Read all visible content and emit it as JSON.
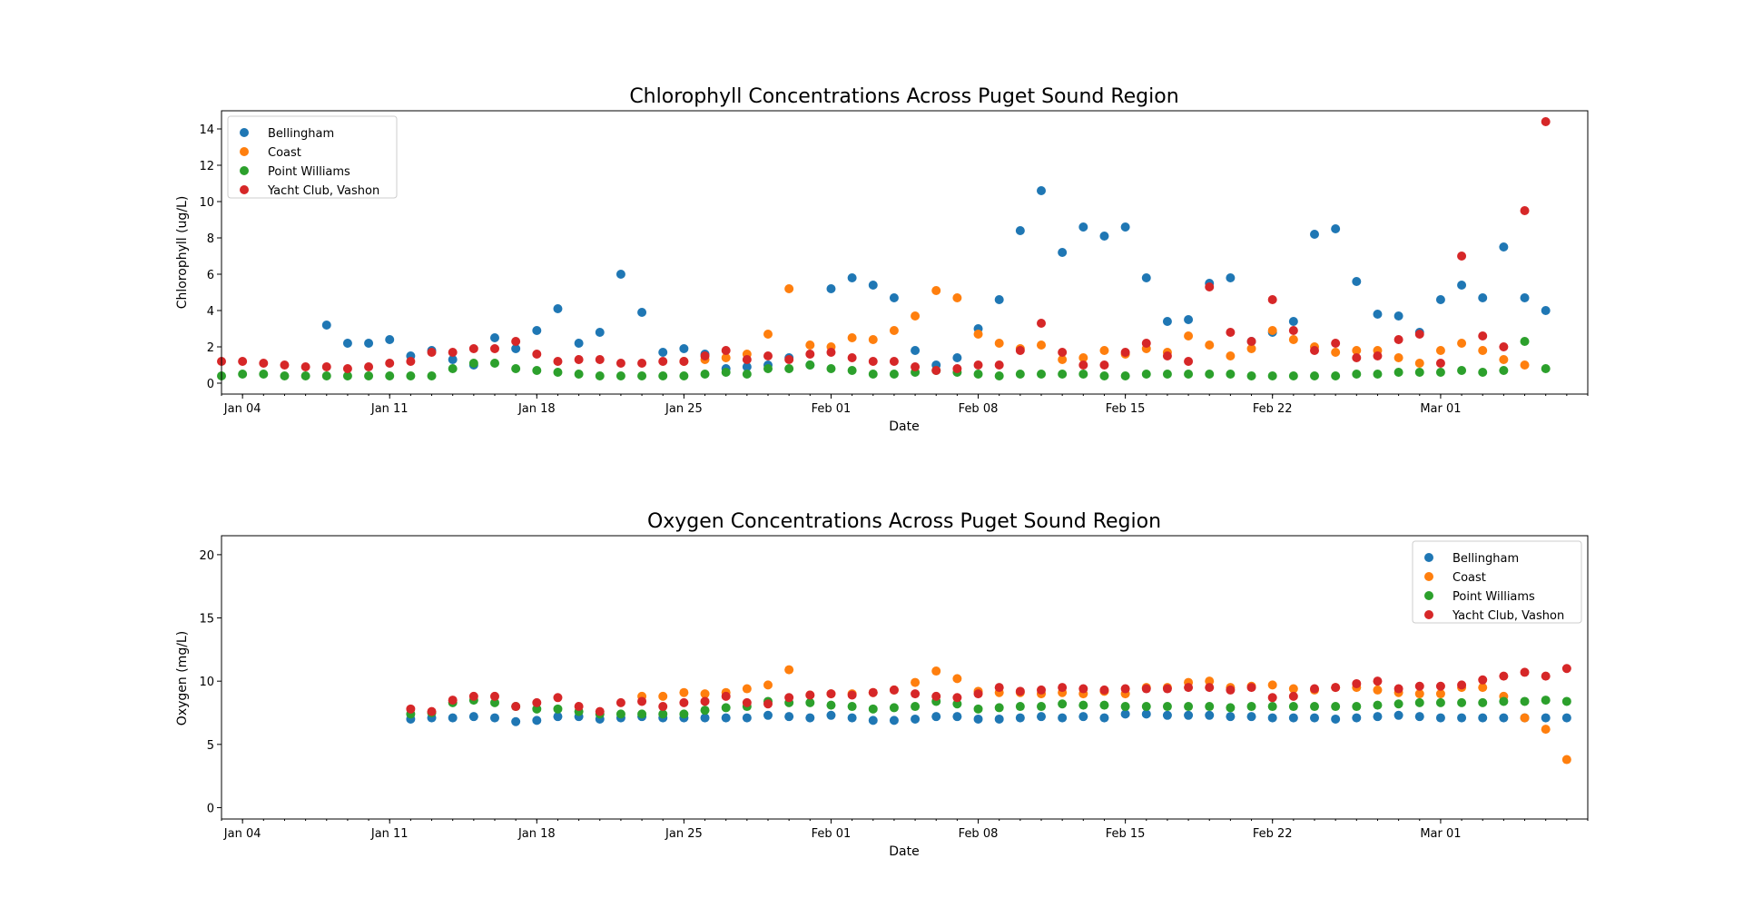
{
  "colors": {
    "Bellingham": "#1f77b4",
    "Coast": "#ff7f0e",
    "Point Williams": "#2ca02c",
    "Yacht Club, Vashon": "#d62728"
  },
  "x_tick_labels": [
    "Jan 04",
    "Jan 11",
    "Jan 18",
    "Jan 25",
    "Feb 01",
    "Feb 08",
    "Feb 15",
    "Feb 22",
    "Mar 01"
  ],
  "chart_data": [
    {
      "type": "scatter",
      "title": "Chlorophyll Concentrations Across Puget Sound Region",
      "xlabel": "Date",
      "ylabel": "Chlorophyll (ug/L)",
      "x_dates": [
        "2020-01-03",
        "2020-01-04",
        "2020-01-05",
        "2020-01-06",
        "2020-01-07",
        "2020-01-08",
        "2020-01-09",
        "2020-01-10",
        "2020-01-11",
        "2020-01-12",
        "2020-01-13",
        "2020-01-14",
        "2020-01-15",
        "2020-01-16",
        "2020-01-17",
        "2020-01-18",
        "2020-01-19",
        "2020-01-20",
        "2020-01-21",
        "2020-01-22",
        "2020-01-23",
        "2020-01-24",
        "2020-01-25",
        "2020-01-26",
        "2020-01-27",
        "2020-01-28",
        "2020-01-29",
        "2020-01-30",
        "2020-01-31",
        "2020-02-01",
        "2020-02-02",
        "2020-02-03",
        "2020-02-04",
        "2020-02-05",
        "2020-02-06",
        "2020-02-07",
        "2020-02-08",
        "2020-02-09",
        "2020-02-10",
        "2020-02-11",
        "2020-02-12",
        "2020-02-13",
        "2020-02-14",
        "2020-02-15",
        "2020-02-16",
        "2020-02-17",
        "2020-02-18",
        "2020-02-19",
        "2020-02-20",
        "2020-02-21",
        "2020-02-22",
        "2020-02-23",
        "2020-02-24",
        "2020-02-25",
        "2020-02-26",
        "2020-02-27",
        "2020-02-28",
        "2020-02-29",
        "2020-03-01",
        "2020-03-02",
        "2020-03-03",
        "2020-03-04",
        "2020-03-05",
        "2020-03-06",
        "2020-03-07",
        "2020-03-08"
      ],
      "xlim": [
        "2020-01-03",
        "2020-03-08"
      ],
      "ylim": [
        -0.6,
        15.0
      ],
      "y_ticks": [
        0,
        2,
        4,
        6,
        8,
        10,
        12,
        14
      ],
      "legend_position": "upper left",
      "series": [
        {
          "name": "Bellingham",
          "values": [
            null,
            null,
            null,
            null,
            null,
            3.2,
            2.2,
            2.2,
            2.4,
            1.5,
            1.8,
            1.3,
            1.0,
            2.5,
            1.9,
            2.9,
            4.1,
            2.2,
            2.8,
            6.0,
            3.9,
            1.7,
            1.9,
            1.6,
            0.8,
            0.9,
            1.0,
            1.4,
            1.0,
            5.2,
            5.8,
            5.4,
            4.7,
            1.8,
            1.0,
            1.4,
            3.0,
            4.6,
            8.4,
            10.6,
            7.2,
            8.6,
            8.1,
            8.6,
            5.8,
            3.4,
            3.5,
            5.5,
            5.8,
            2.3,
            2.8,
            3.4,
            8.2,
            8.5,
            5.6,
            3.8,
            3.7,
            2.8,
            4.6,
            5.4,
            4.7,
            7.5,
            4.7,
            4.0,
            null,
            null
          ]
        },
        {
          "name": "Coast",
          "values": [
            null,
            null,
            null,
            null,
            null,
            null,
            null,
            null,
            null,
            null,
            null,
            null,
            null,
            null,
            null,
            null,
            null,
            null,
            null,
            null,
            null,
            null,
            1.2,
            1.3,
            1.4,
            1.6,
            2.7,
            5.2,
            2.1,
            2.0,
            2.5,
            2.4,
            2.9,
            3.7,
            5.1,
            4.7,
            2.7,
            2.2,
            1.9,
            2.1,
            1.3,
            1.4,
            1.8,
            1.6,
            1.9,
            1.7,
            2.6,
            2.1,
            1.5,
            1.9,
            2.9,
            2.4,
            2.0,
            1.7,
            1.8,
            1.8,
            1.4,
            1.1,
            1.8,
            2.2,
            1.8,
            1.3,
            1.0,
            null,
            null,
            null
          ]
        },
        {
          "name": "Point Williams",
          "values": [
            0.4,
            0.5,
            0.5,
            0.4,
            0.4,
            0.4,
            0.4,
            0.4,
            0.4,
            0.4,
            0.4,
            0.8,
            1.1,
            1.1,
            0.8,
            0.7,
            0.6,
            0.5,
            0.4,
            0.4,
            0.4,
            0.4,
            0.4,
            0.5,
            0.6,
            0.5,
            0.8,
            0.8,
            1.0,
            0.8,
            0.7,
            0.5,
            0.5,
            0.6,
            0.7,
            0.6,
            0.5,
            0.4,
            0.5,
            0.5,
            0.5,
            0.5,
            0.4,
            0.4,
            0.5,
            0.5,
            0.5,
            0.5,
            0.5,
            0.4,
            0.4,
            0.4,
            0.4,
            0.4,
            0.5,
            0.5,
            0.6,
            0.6,
            0.6,
            0.7,
            0.6,
            0.7,
            2.3,
            0.8,
            null,
            null
          ]
        },
        {
          "name": "Yacht Club, Vashon",
          "values": [
            1.2,
            1.2,
            1.1,
            1.0,
            0.9,
            0.9,
            0.8,
            0.9,
            1.1,
            1.2,
            1.7,
            1.7,
            1.9,
            1.9,
            2.3,
            1.6,
            1.2,
            1.3,
            1.3,
            1.1,
            1.1,
            1.2,
            1.2,
            1.5,
            1.8,
            1.3,
            1.5,
            1.3,
            1.6,
            1.7,
            1.4,
            1.2,
            1.2,
            0.9,
            0.7,
            0.8,
            1.0,
            1.0,
            1.8,
            3.3,
            1.7,
            1.0,
            1.0,
            1.7,
            2.2,
            1.5,
            1.2,
            5.3,
            2.8,
            2.3,
            4.6,
            2.9,
            1.8,
            2.2,
            1.4,
            1.5,
            2.4,
            2.7,
            1.1,
            7.0,
            2.6,
            2.0,
            9.5,
            14.4,
            null,
            null
          ]
        }
      ]
    },
    {
      "type": "scatter",
      "title": "Oxygen Concentrations Across Puget Sound Region",
      "xlabel": "Date",
      "ylabel": "Oxygen (mg/L)",
      "x_dates": [
        "2020-01-12",
        "2020-01-13",
        "2020-01-14",
        "2020-01-15",
        "2020-01-16",
        "2020-01-17",
        "2020-01-18",
        "2020-01-19",
        "2020-01-20",
        "2020-01-21",
        "2020-01-22",
        "2020-01-23",
        "2020-01-24",
        "2020-01-25",
        "2020-01-26",
        "2020-01-27",
        "2020-01-28",
        "2020-01-29",
        "2020-01-30",
        "2020-01-31",
        "2020-02-01",
        "2020-02-02",
        "2020-02-03",
        "2020-02-04",
        "2020-02-05",
        "2020-02-06",
        "2020-02-07",
        "2020-02-08",
        "2020-02-09",
        "2020-02-10",
        "2020-02-11",
        "2020-02-12",
        "2020-02-13",
        "2020-02-14",
        "2020-02-15",
        "2020-02-16",
        "2020-02-17",
        "2020-02-18",
        "2020-02-19",
        "2020-02-20",
        "2020-02-21",
        "2020-02-22",
        "2020-02-23",
        "2020-02-24",
        "2020-02-25",
        "2020-02-26",
        "2020-02-27",
        "2020-02-28",
        "2020-02-29",
        "2020-03-01",
        "2020-03-02",
        "2020-03-03",
        "2020-03-04",
        "2020-03-05",
        "2020-03-06",
        "2020-03-07"
      ],
      "xlim": [
        "2020-01-03",
        "2020-03-08"
      ],
      "ylim": [
        -0.9,
        21.5
      ],
      "y_ticks": [
        0,
        5,
        10,
        15,
        20
      ],
      "legend_position": "upper right",
      "series": [
        {
          "name": "Bellingham",
          "values": [
            7.0,
            7.1,
            7.1,
            7.2,
            7.1,
            6.8,
            6.9,
            7.2,
            7.2,
            7.0,
            7.1,
            7.2,
            7.1,
            7.1,
            7.1,
            7.1,
            7.1,
            7.3,
            7.2,
            7.1,
            7.3,
            7.1,
            6.9,
            6.9,
            7.0,
            7.2,
            7.2,
            7.0,
            7.0,
            7.1,
            7.2,
            7.1,
            7.2,
            7.1,
            7.4,
            7.4,
            7.3,
            7.3,
            7.3,
            7.2,
            7.2,
            7.1,
            7.1,
            7.1,
            7.0,
            7.1,
            7.2,
            7.3,
            7.2,
            7.1,
            7.1,
            7.1,
            7.1,
            7.1,
            7.1,
            7.1
          ]
        },
        {
          "name": "Coast",
          "values": [
            null,
            null,
            null,
            null,
            null,
            null,
            null,
            null,
            null,
            null,
            null,
            8.8,
            8.8,
            9.1,
            9.0,
            9.1,
            9.4,
            9.7,
            10.9,
            8.9,
            9.0,
            9.0,
            9.1,
            9.3,
            9.9,
            10.8,
            10.2,
            9.2,
            9.1,
            9.1,
            9.0,
            9.1,
            9.0,
            9.2,
            9.0,
            9.5,
            9.5,
            9.9,
            10.0,
            9.5,
            9.6,
            9.7,
            9.4,
            9.3,
            9.5,
            9.5,
            9.3,
            9.1,
            9.0,
            9.0,
            9.5,
            9.5,
            8.8,
            7.1,
            6.2,
            3.8
          ]
        },
        {
          "name": "Point Williams",
          "values": [
            7.4,
            7.5,
            8.3,
            8.5,
            8.3,
            8.0,
            7.8,
            7.8,
            7.6,
            7.4,
            7.4,
            7.4,
            7.4,
            7.4,
            7.7,
            7.9,
            8.0,
            8.4,
            8.3,
            8.3,
            8.1,
            8.0,
            7.8,
            7.9,
            8.0,
            8.4,
            8.2,
            7.8,
            7.9,
            8.0,
            8.0,
            8.2,
            8.1,
            8.1,
            8.0,
            8.0,
            8.0,
            8.0,
            8.0,
            7.9,
            8.0,
            8.0,
            8.0,
            8.0,
            8.0,
            8.0,
            8.1,
            8.2,
            8.3,
            8.3,
            8.3,
            8.3,
            8.4,
            8.4,
            8.5,
            8.4
          ]
        },
        {
          "name": "Yacht Club, Vashon",
          "values": [
            7.8,
            7.6,
            8.5,
            8.8,
            8.8,
            8.0,
            8.3,
            8.7,
            8.0,
            7.6,
            8.3,
            8.4,
            8.0,
            8.3,
            8.4,
            8.8,
            8.3,
            8.2,
            8.7,
            8.9,
            9.0,
            8.9,
            9.1,
            9.3,
            9.0,
            8.8,
            8.7,
            9.0,
            9.5,
            9.2,
            9.3,
            9.5,
            9.4,
            9.3,
            9.4,
            9.4,
            9.4,
            9.5,
            9.5,
            9.3,
            9.5,
            8.7,
            8.8,
            9.4,
            9.5,
            9.8,
            10.0,
            9.4,
            9.6,
            9.6,
            9.7,
            10.1,
            10.4,
            10.7,
            10.4,
            11.0
          ]
        }
      ]
    }
  ]
}
